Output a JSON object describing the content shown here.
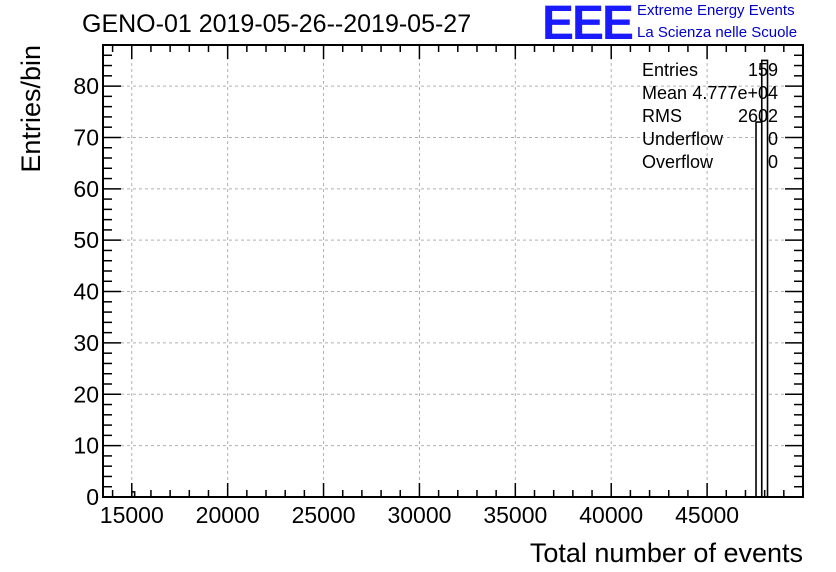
{
  "header": {
    "title": "GENO-01 2019-05-26--2019-05-27",
    "logo_text": "EEE",
    "logo_line1": "Extreme Energy Events",
    "logo_line2": "La Scienza nelle Scuole"
  },
  "stats": {
    "rows": [
      {
        "label": "Entries",
        "value": "159"
      },
      {
        "label": "Mean",
        "value": "4.777e+04"
      },
      {
        "label": "RMS",
        "value": "2602"
      },
      {
        "label": "Underflow",
        "value": "0"
      },
      {
        "label": "Overflow",
        "value": "0"
      }
    ]
  },
  "chart_data": {
    "type": "bar",
    "title": "GENO-01 2019-05-26--2019-05-27",
    "xlabel": "Total number of events",
    "ylabel": "Entries/bin",
    "xlim": [
      13500,
      50000
    ],
    "ylim": [
      0,
      88
    ],
    "x_ticks": [
      15000,
      20000,
      25000,
      30000,
      35000,
      40000,
      45000
    ],
    "y_ticks": [
      0,
      10,
      20,
      30,
      40,
      50,
      60,
      70,
      80
    ],
    "grid": true,
    "bins": [
      {
        "x0": 15000,
        "x1": 15150,
        "value": 1
      },
      {
        "x0": 47550,
        "x1": 47850,
        "value": 73
      },
      {
        "x0": 47850,
        "x1": 48150,
        "value": 85
      }
    ],
    "colors": {
      "line": "#000000",
      "grid": "#b0b0b0",
      "fill": "#ffffff"
    }
  }
}
